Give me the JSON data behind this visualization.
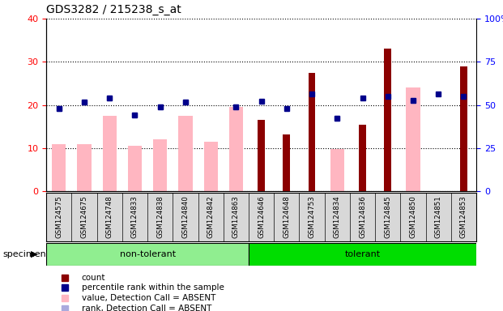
{
  "title": "GDS3282 / 215238_s_at",
  "samples": [
    "GSM124575",
    "GSM124675",
    "GSM124748",
    "GSM124833",
    "GSM124838",
    "GSM124840",
    "GSM124842",
    "GSM124863",
    "GSM124646",
    "GSM124648",
    "GSM124753",
    "GSM124834",
    "GSM124836",
    "GSM124845",
    "GSM124850",
    "GSM124851",
    "GSM124853"
  ],
  "n_nontolerant": 8,
  "count_values": [
    null,
    null,
    null,
    null,
    null,
    null,
    null,
    null,
    16.5,
    13.2,
    27.5,
    null,
    15.5,
    33.0,
    null,
    null,
    29.0
  ],
  "rank_values": [
    48.0,
    51.5,
    54.0,
    44.0,
    49.0,
    51.5,
    null,
    49.0,
    52.0,
    48.0,
    56.5,
    42.5,
    54.0,
    55.0,
    52.5,
    56.5,
    55.0
  ],
  "value_absent": [
    11.0,
    11.0,
    17.5,
    10.5,
    12.0,
    17.5,
    11.5,
    19.5,
    null,
    null,
    null,
    9.8,
    null,
    null,
    24.0,
    null,
    null
  ],
  "rank_absent": [
    48.0,
    51.5,
    54.0,
    44.0,
    49.0,
    51.5,
    null,
    49.0,
    null,
    null,
    null,
    42.5,
    null,
    null,
    52.5,
    null,
    null
  ],
  "ylim_left": [
    0,
    40
  ],
  "ylim_right": [
    0,
    100
  ],
  "yticks_left": [
    0,
    10,
    20,
    30,
    40
  ],
  "ytick_labels_left": [
    "0",
    "10",
    "20",
    "30",
    "40"
  ],
  "yticks_right": [
    0,
    25,
    50,
    75,
    100
  ],
  "ytick_labels_right": [
    "0",
    "25",
    "50",
    "75",
    "100%"
  ],
  "color_count": "#8B0000",
  "color_rank": "#00008B",
  "color_value_absent": "#FFB6C1",
  "color_rank_absent": "#AAAADD",
  "color_nontolerant": "#90EE90",
  "color_tolerant": "#00DD00",
  "legend_items": [
    {
      "label": "count",
      "color": "#8B0000"
    },
    {
      "label": "percentile rank within the sample",
      "color": "#00008B"
    },
    {
      "label": "value, Detection Call = ABSENT",
      "color": "#FFB6C1"
    },
    {
      "label": "rank, Detection Call = ABSENT",
      "color": "#AAAADD"
    }
  ]
}
